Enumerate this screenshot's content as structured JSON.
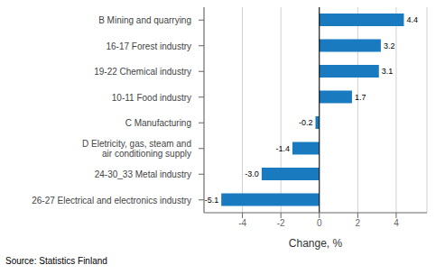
{
  "chart_data": {
    "type": "bar",
    "orientation": "horizontal",
    "categories": [
      "26-27 Electrical and electronics industry",
      "24-30_33 Metal industry",
      "D Eletricity, gas, steam and\nair conditioning supply",
      "C Manufacturing",
      "10-11 Food industry",
      "19-22 Chemical industry",
      "16-17 Forest industry",
      "B Mining and quarrying"
    ],
    "values": [
      -5.1,
      -3.0,
      -1.4,
      -0.2,
      1.7,
      3.1,
      3.2,
      4.4
    ],
    "value_labels": [
      "-5.1",
      "-3.0",
      "-1.4",
      "-0.2",
      "1.7",
      "3.1",
      "3.2",
      "4.4"
    ],
    "data_labels": true,
    "color": "#1a7abf",
    "xlabel": "Change, %",
    "xlim": [
      -6.0,
      5.6
    ],
    "xticks": [
      -4,
      -2,
      0,
      2,
      4
    ],
    "grid": "x",
    "annotation": "Source: Statistics Finland"
  }
}
